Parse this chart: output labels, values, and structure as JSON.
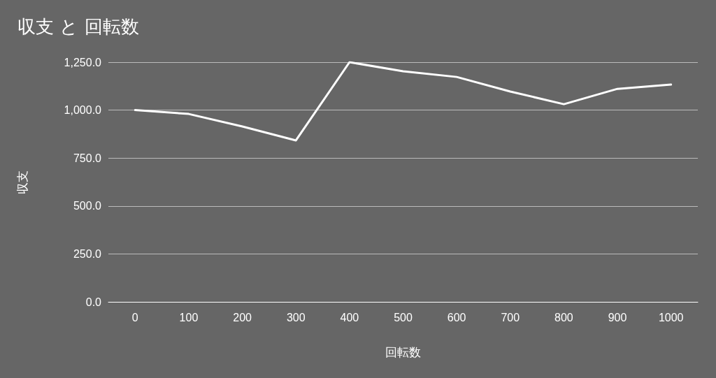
{
  "chart_data": {
    "type": "line",
    "title": "収支 と 回転数",
    "xlabel": "回転数",
    "ylabel": "収支",
    "categories": [
      "0",
      "100",
      "200",
      "300",
      "400",
      "500",
      "600",
      "700",
      "800",
      "900",
      "1000"
    ],
    "series": [
      {
        "color": "#ffffff",
        "values": [
          1000,
          980,
          915,
          842,
          1250,
          1203,
          1173,
          1097,
          1031,
          1111,
          1133
        ]
      }
    ],
    "ylim": [
      0,
      1250
    ],
    "yticks": [
      {
        "value": 0,
        "label": "0.0"
      },
      {
        "value": 250,
        "label": "250.0"
      },
      {
        "value": 500,
        "label": "500.0"
      },
      {
        "value": 750,
        "label": "750.0"
      },
      {
        "value": 1000,
        "label": "1,000.0"
      },
      {
        "value": 1250,
        "label": "1,250.0"
      }
    ],
    "grid": "y",
    "marker": "none",
    "line_style": "solid"
  }
}
